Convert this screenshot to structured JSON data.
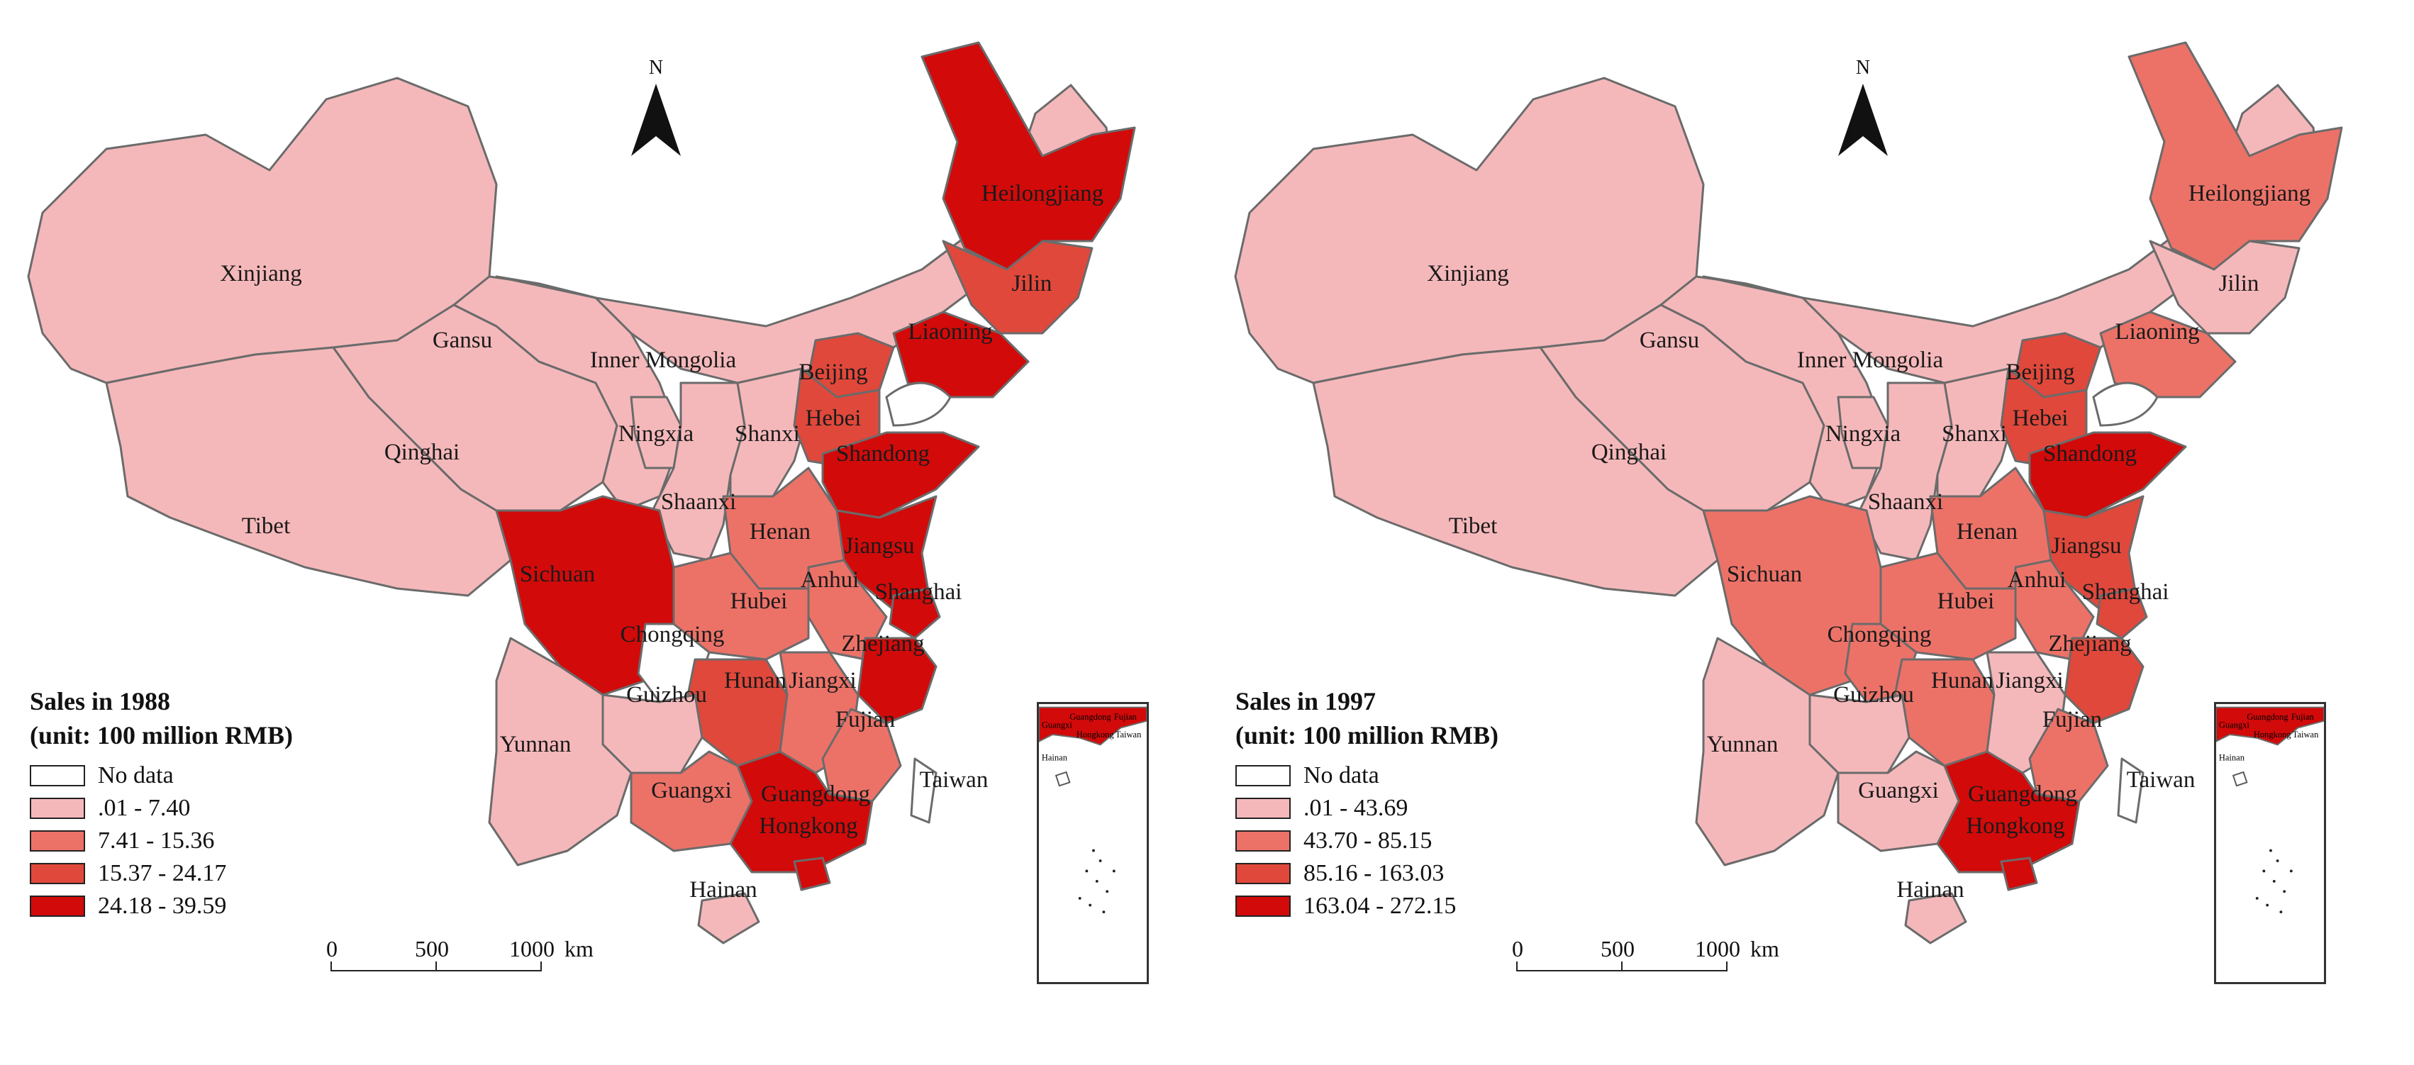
{
  "colors": {
    "class0": "#ffffff",
    "class1": "#f5b8ba",
    "class2": "#ec7268",
    "class3": "#e0483b",
    "class4": "#d20a0a",
    "border": "#6b6b6b"
  },
  "maps": [
    {
      "north_label": "N",
      "legend": {
        "title_line1": "Sales in 1988",
        "title_line2": "(unit: 100 million RMB)",
        "items": [
          {
            "label": "No data",
            "class": 0
          },
          {
            "label": ".01 - 7.40",
            "class": 1
          },
          {
            "label": "7.41 - 15.36",
            "class": 2
          },
          {
            "label": "15.37 - 24.17",
            "class": 3
          },
          {
            "label": "24.18 - 39.59",
            "class": 4
          }
        ]
      },
      "scale": {
        "t0": "0",
        "t1": "500",
        "t2": "1000",
        "unit": "km"
      },
      "inset_labels": [
        "Guangxi",
        "Guangdong",
        "Fujian",
        "Hongkong",
        "Taiwan",
        "Hainan"
      ],
      "provinces": {
        "xinjiang": {
          "label": "Xinjiang",
          "class": 1
        },
        "tibet": {
          "label": "Tibet",
          "class": 1
        },
        "qinghai": {
          "label": "Qinghai",
          "class": 1
        },
        "gansu": {
          "label": "Gansu",
          "class": 1
        },
        "inner_mongolia": {
          "label": "Inner Mongolia",
          "class": 1
        },
        "ningxia": {
          "label": "Ningxia",
          "class": 1
        },
        "shaanxi": {
          "label": "Shaanxi",
          "class": 1
        },
        "shanxi": {
          "label": "Shanxi",
          "class": 1
        },
        "heilongjiang": {
          "label": "Heilongjiang",
          "class": 4
        },
        "jilin": {
          "label": "Jilin",
          "class": 3
        },
        "liaoning": {
          "label": "Liaoning",
          "class": 4
        },
        "beijing": {
          "label": "Beijing",
          "class": 3
        },
        "hebei": {
          "label": "Hebei",
          "class": 3
        },
        "shandong": {
          "label": "Shandong",
          "class": 4
        },
        "henan": {
          "label": "Henan",
          "class": 2
        },
        "jiangsu": {
          "label": "Jiangsu",
          "class": 4
        },
        "anhui": {
          "label": "Anhui",
          "class": 2
        },
        "shanghai": {
          "label": "Shanghai",
          "class": 4
        },
        "hubei": {
          "label": "Hubei",
          "class": 2
        },
        "zhejiang": {
          "label": "Zhejiang",
          "class": 4
        },
        "sichuan": {
          "label": "Sichuan",
          "class": 4
        },
        "chongqing": {
          "label": "Chongqing",
          "class": 0
        },
        "hunan": {
          "label": "Hunan",
          "class": 3
        },
        "jiangxi": {
          "label": "Jiangxi",
          "class": 2
        },
        "guizhou": {
          "label": "Guizhou",
          "class": 1
        },
        "fujian": {
          "label": "Fujian",
          "class": 2
        },
        "yunnan": {
          "label": "Yunnan",
          "class": 1
        },
        "guangxi": {
          "label": "Guangxi",
          "class": 2
        },
        "guangdong": {
          "label": "Guangdong",
          "class": 4
        },
        "hongkong": {
          "label": "Hongkong",
          "class": 4
        },
        "taiwan": {
          "label": "Taiwan",
          "class": 0
        },
        "hainan": {
          "label": "Hainan",
          "class": 1
        }
      }
    },
    {
      "north_label": "N",
      "legend": {
        "title_line1": "Sales in 1997",
        "title_line2": "(unit: 100 million RMB)",
        "items": [
          {
            "label": "No data",
            "class": 0
          },
          {
            "label": ".01 - 43.69",
            "class": 1
          },
          {
            "label": "43.70 - 85.15",
            "class": 2
          },
          {
            "label": "85.16 - 163.03",
            "class": 3
          },
          {
            "label": "163.04 - 272.15",
            "class": 4
          }
        ]
      },
      "scale": {
        "t0": "0",
        "t1": "500",
        "t2": "1000",
        "unit": "km"
      },
      "inset_labels": [
        "Guangxi",
        "Guangdong",
        "Fujian",
        "Hongkong",
        "Taiwan",
        "Hainan"
      ],
      "provinces": {
        "xinjiang": {
          "label": "Xinjiang",
          "class": 1
        },
        "tibet": {
          "label": "Tibet",
          "class": 1
        },
        "qinghai": {
          "label": "Qinghai",
          "class": 1
        },
        "gansu": {
          "label": "Gansu",
          "class": 1
        },
        "inner_mongolia": {
          "label": "Inner Mongolia",
          "class": 1
        },
        "ningxia": {
          "label": "Ningxia",
          "class": 1
        },
        "shaanxi": {
          "label": "Shaanxi",
          "class": 1
        },
        "shanxi": {
          "label": "Shanxi",
          "class": 1
        },
        "heilongjiang": {
          "label": "Heilongjiang",
          "class": 2
        },
        "jilin": {
          "label": "Jilin",
          "class": 1
        },
        "liaoning": {
          "label": "Liaoning",
          "class": 2
        },
        "beijing": {
          "label": "Beijing",
          "class": 3
        },
        "hebei": {
          "label": "Hebei",
          "class": 3
        },
        "shandong": {
          "label": "Shandong",
          "class": 4
        },
        "henan": {
          "label": "Henan",
          "class": 2
        },
        "jiangsu": {
          "label": "Jiangsu",
          "class": 3
        },
        "anhui": {
          "label": "Anhui",
          "class": 2
        },
        "shanghai": {
          "label": "Shanghai",
          "class": 3
        },
        "hubei": {
          "label": "Hubei",
          "class": 2
        },
        "zhejiang": {
          "label": "Zhejiang",
          "class": 3
        },
        "sichuan": {
          "label": "Sichuan",
          "class": 2
        },
        "chongqing": {
          "label": "Chongqing",
          "class": 2
        },
        "hunan": {
          "label": "Hunan",
          "class": 2
        },
        "jiangxi": {
          "label": "Jiangxi",
          "class": 1
        },
        "guizhou": {
          "label": "Guizhou",
          "class": 1
        },
        "fujian": {
          "label": "Fujian",
          "class": 2
        },
        "yunnan": {
          "label": "Yunnan",
          "class": 1
        },
        "guangxi": {
          "label": "Guangxi",
          "class": 1
        },
        "guangdong": {
          "label": "Guangdong",
          "class": 4
        },
        "hongkong": {
          "label": "Hongkong",
          "class": 4
        },
        "taiwan": {
          "label": "Taiwan",
          "class": 0
        },
        "hainan": {
          "label": "Hainan",
          "class": 1
        }
      }
    }
  ]
}
